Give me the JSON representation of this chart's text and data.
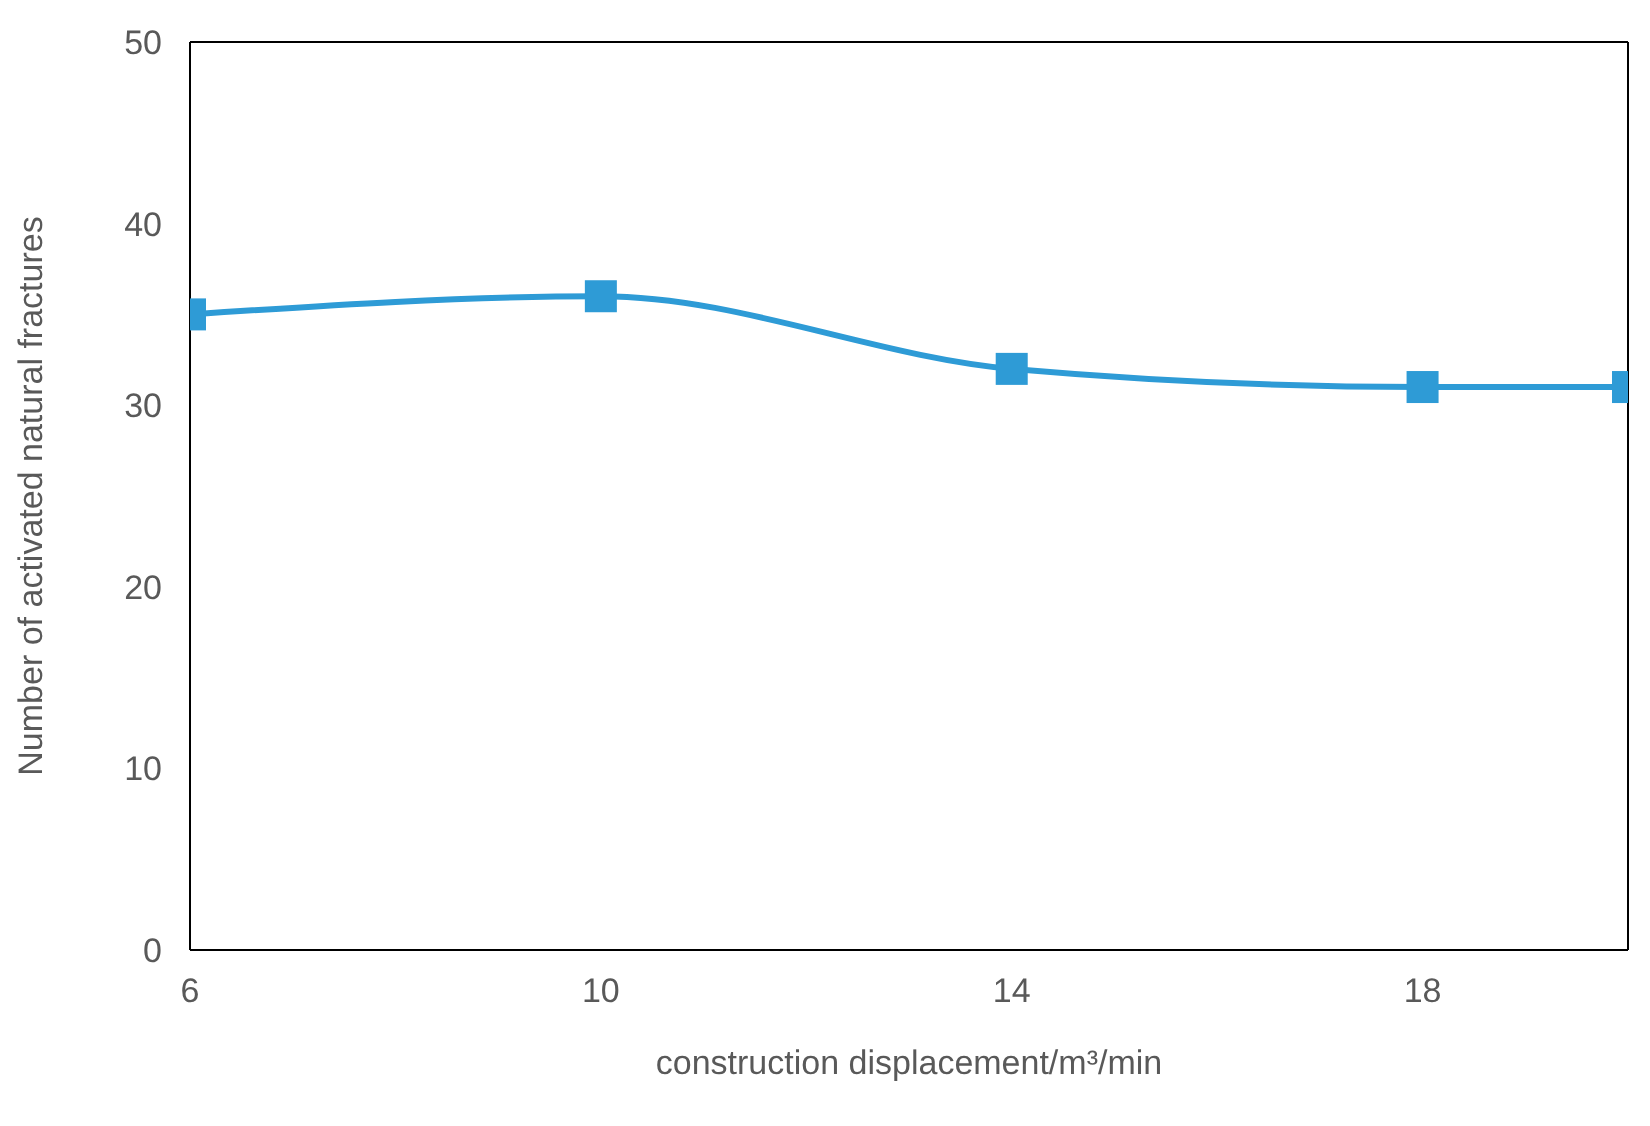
{
  "chart_data": {
    "type": "line",
    "xlabel": "construction displacement/m³/min",
    "ylabel": "Number of activated natural fractures",
    "x": [
      6,
      10,
      14,
      18,
      20
    ],
    "series": [
      {
        "color": "#2e9bd6",
        "values": [
          35,
          36,
          32,
          31,
          31
        ]
      }
    ],
    "xlim": [
      6,
      20
    ],
    "xticks": [
      6,
      10,
      14,
      18
    ],
    "ylim": [
      0,
      50
    ],
    "yticks": [
      0,
      10,
      20,
      30,
      40,
      50
    ],
    "marker": "square",
    "line_style": "solid"
  }
}
